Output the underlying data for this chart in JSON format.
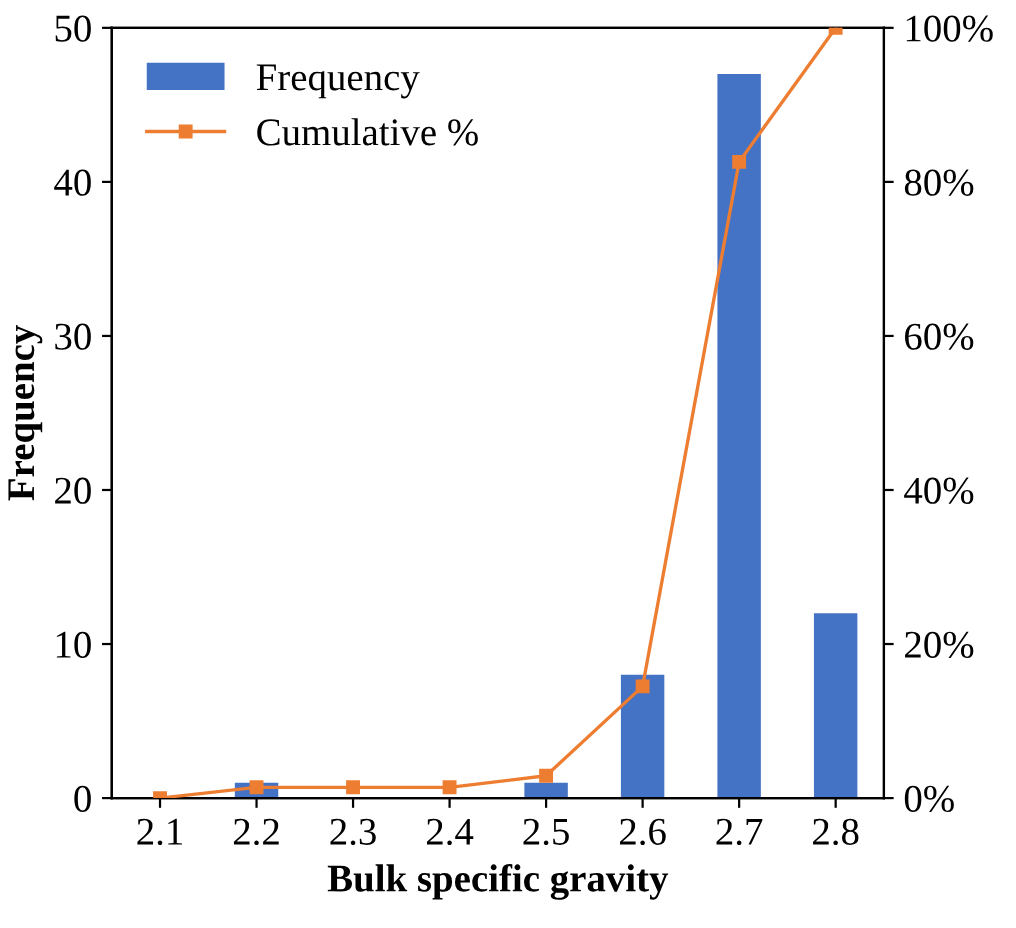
{
  "chart_data": {
    "type": "bar",
    "xlabel": "Bulk specific gravity",
    "ylabel": "Frequency",
    "categories": [
      "2.1",
      "2.2",
      "2.3",
      "2.4",
      "2.5",
      "2.6",
      "2.7",
      "2.8"
    ],
    "series": [
      {
        "name": "Frequency",
        "color": "#4472c4",
        "values": [
          null,
          1,
          0,
          0,
          1,
          8,
          47,
          12
        ]
      },
      {
        "name": "Cumulative %",
        "color": "#ed7d31",
        "type": "line",
        "axis": "y2",
        "marker": "square",
        "values": [
          0,
          1.4,
          1.4,
          1.4,
          2.9,
          14.5,
          82.6,
          100
        ]
      }
    ],
    "ylim": [
      0,
      50
    ],
    "yticks": [
      0,
      10,
      20,
      30,
      40,
      50
    ],
    "y2lim": [
      0,
      100
    ],
    "y2ticks": [
      {
        "value": 0,
        "label": "0%"
      },
      {
        "value": 20,
        "label": "20%"
      },
      {
        "value": 40,
        "label": "40%"
      },
      {
        "value": 60,
        "label": "60%"
      },
      {
        "value": 80,
        "label": "80%"
      },
      {
        "value": 100,
        "label": "100%"
      }
    ],
    "legend": "top left",
    "grid": false
  }
}
